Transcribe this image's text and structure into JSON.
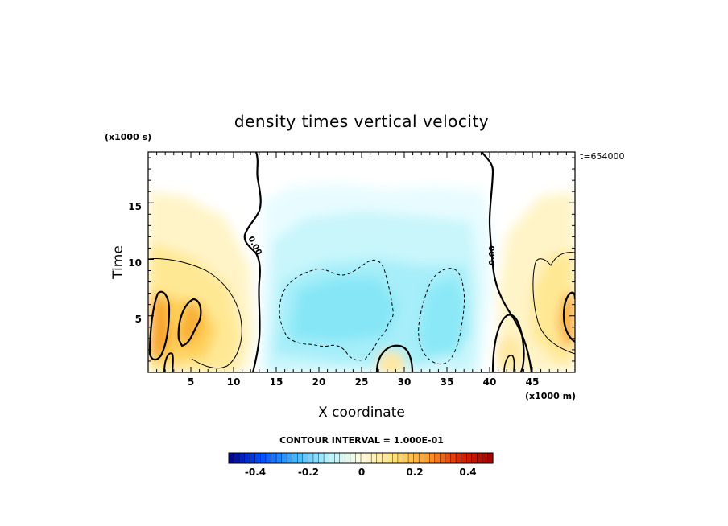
{
  "chart_data": {
    "type": "heatmap",
    "title": "density times vertical velocity",
    "xlabel": "X coordinate",
    "ylabel": "Time",
    "x_unit": "(x1000 m)",
    "y_unit": "(x1000 s)",
    "time_stamp": "t=654000",
    "xlim": [
      0,
      50
    ],
    "ylim": [
      0,
      19.5
    ],
    "x_ticks": [
      "5",
      "10",
      "15",
      "20",
      "25",
      "30",
      "35",
      "40",
      "45"
    ],
    "y_ticks": [
      "5",
      "10",
      "15"
    ],
    "contour_interval_text": "CONTOUR INTERVAL = 1.000E-01",
    "contour_labels": [
      "0.00",
      "0.00"
    ],
    "colorbar": {
      "range": [
        -0.5,
        0.5
      ],
      "ticks": [
        "-0.4",
        "-0.2",
        "0",
        "0.2",
        "0.4"
      ],
      "colors": [
        "#00008b",
        "#0050ff",
        "#40b4ff",
        "#b4f2ff",
        "#fffbe0",
        "#ffe27a",
        "#ffa030",
        "#d82800",
        "#a00000"
      ]
    },
    "features": [
      {
        "region": "left edge",
        "x_range": [
          0,
          12
        ],
        "t_range": [
          0,
          16
        ],
        "peak_value": 0.3,
        "sign": "positive"
      },
      {
        "region": "center",
        "x_range": [
          13,
          40
        ],
        "t_range": [
          0,
          19.5
        ],
        "peak_value": -0.2,
        "sign": "negative"
      },
      {
        "region": "right edge",
        "x_range": [
          42,
          50
        ],
        "t_range": [
          0,
          16
        ],
        "peak_value": 0.3,
        "sign": "positive"
      }
    ]
  }
}
